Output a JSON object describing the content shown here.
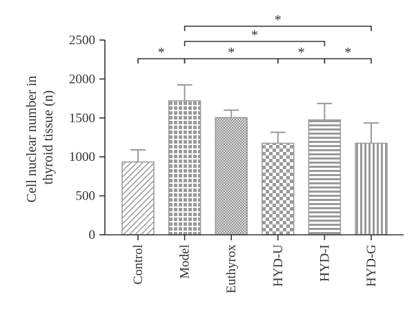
{
  "chart_data": {
    "type": "bar",
    "categories": [
      "Control",
      "Model",
      "Euthyrox",
      "HYD-U",
      "HYD-I",
      "HYD-G"
    ],
    "values": [
      935,
      1720,
      1505,
      1175,
      1475,
      1175
    ],
    "error_upper": [
      1090,
      1925,
      1600,
      1315,
      1685,
      1435
    ],
    "ylabel": "Cell nuclear number in thyroid tissue (n)",
    "ylabel_lines": [
      "Cell nuclear number in",
      "thyroid tissue (n)"
    ],
    "ylim": [
      0,
      2500
    ],
    "yticks": [
      0,
      500,
      1000,
      1500,
      2000,
      2500
    ],
    "patterns": [
      "diagonal",
      "grid",
      "dots",
      "checker",
      "horizontal",
      "vertical"
    ],
    "significance": [
      {
        "from": 0,
        "to": 1,
        "label": "*",
        "level": 0
      },
      {
        "from": 1,
        "to": 3,
        "label": "*",
        "level": 0
      },
      {
        "from": 3,
        "to": 4,
        "label": "*",
        "level": 0
      },
      {
        "from": 4,
        "to": 5,
        "label": "*",
        "level": 0
      },
      {
        "from": 1,
        "to": 4,
        "label": "*",
        "level": 1
      },
      {
        "from": 1,
        "to": 5,
        "label": "*",
        "level": 2
      }
    ],
    "grid": false,
    "bar_color": "#9a9a9a",
    "axis_color": "#333333"
  }
}
